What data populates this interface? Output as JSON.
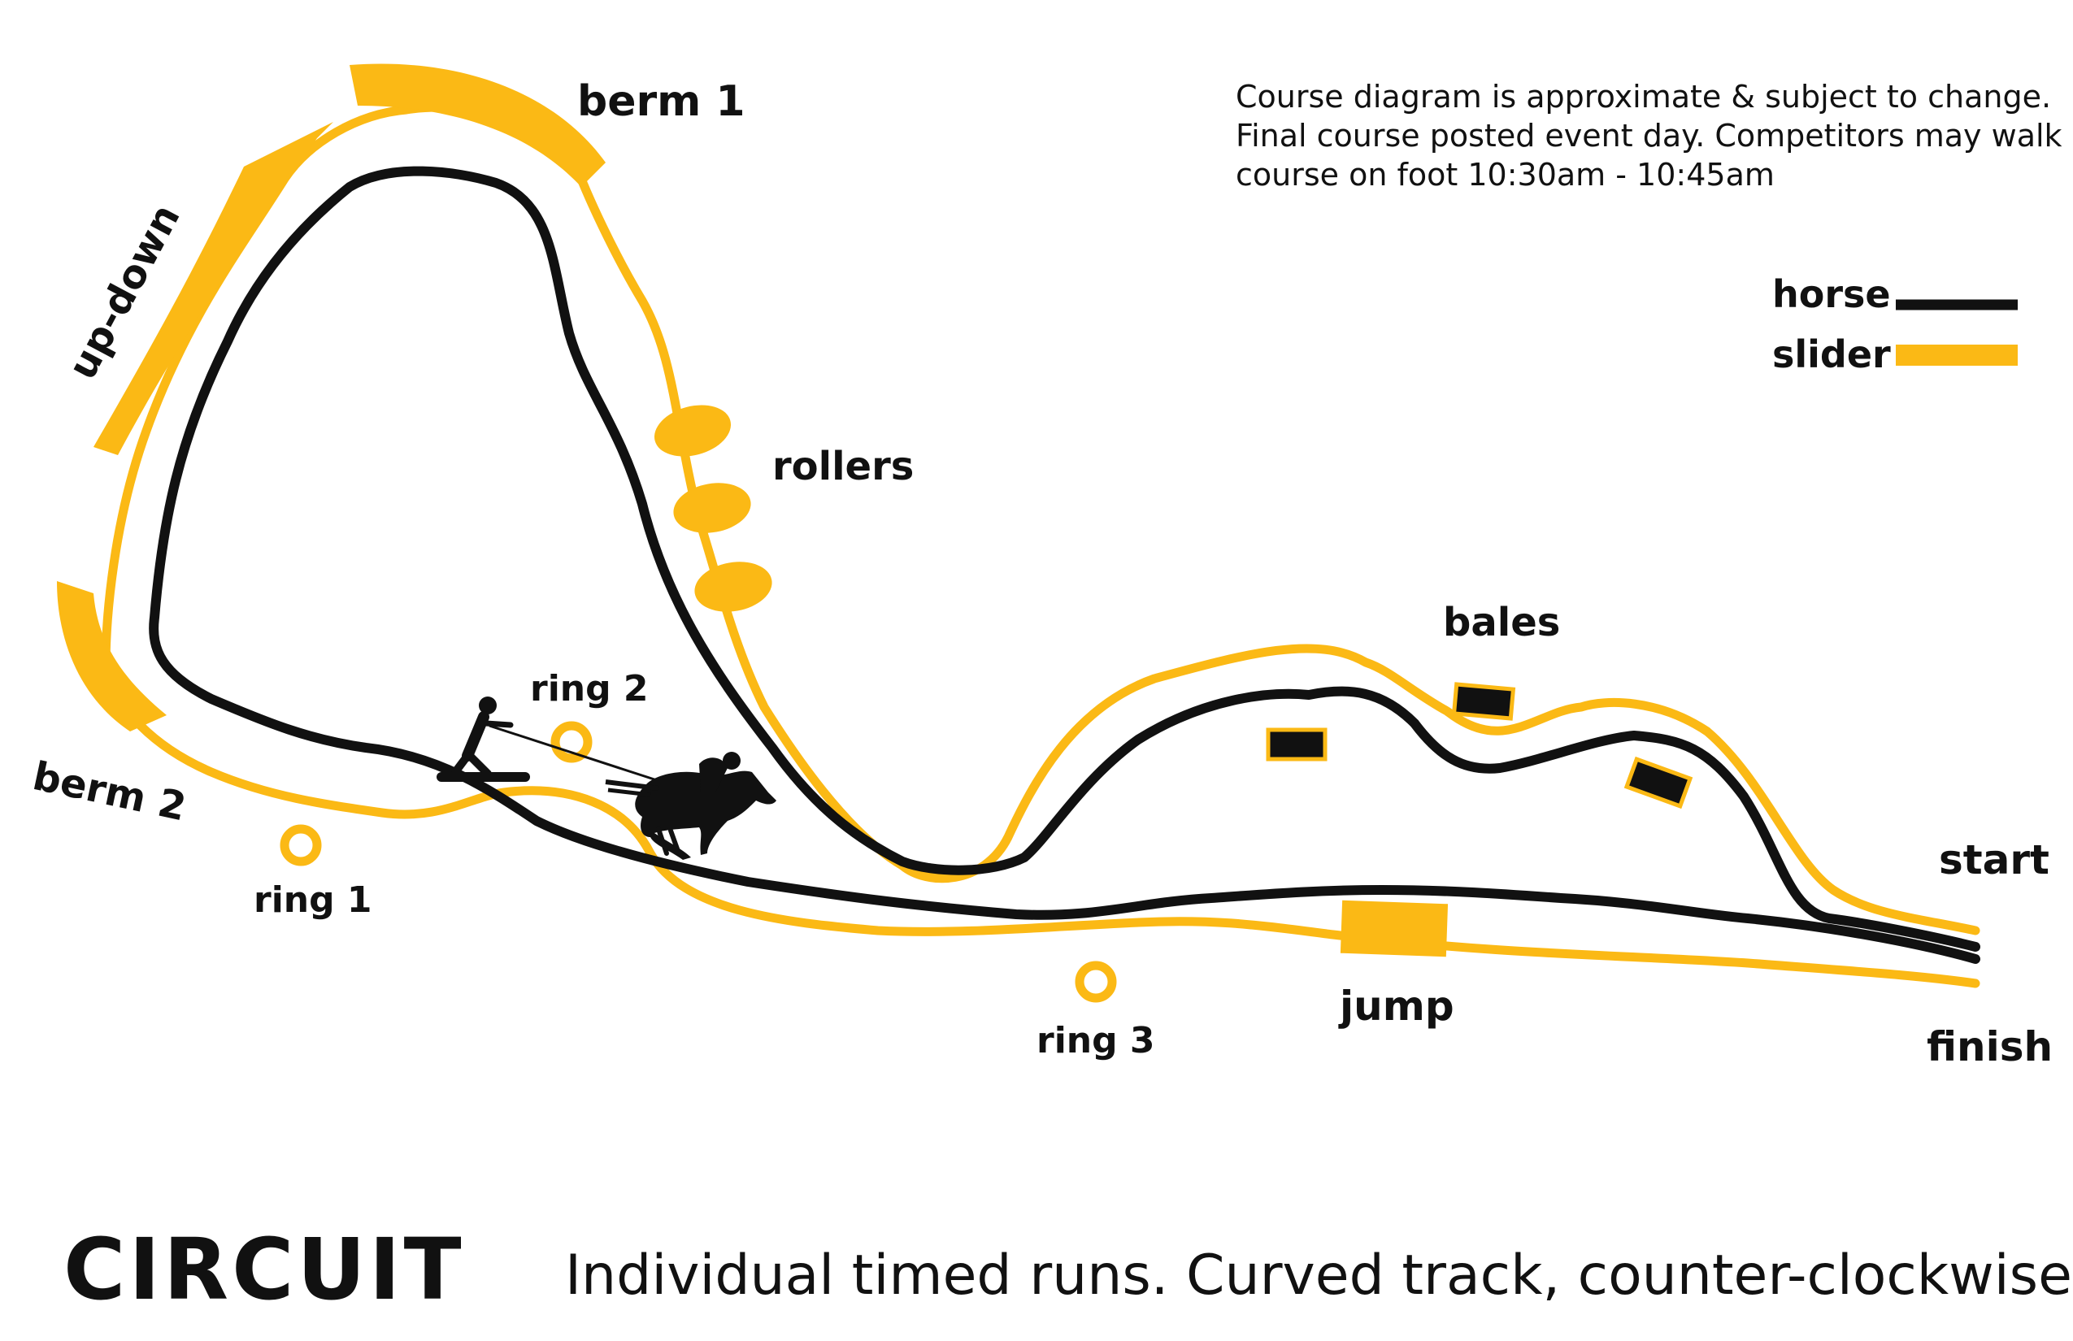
{
  "colors": {
    "horse": "#111111",
    "slider": "#FBB915",
    "background": "#FFFFFF"
  },
  "note_lines": [
    "Course diagram is approximate & subject to change.",
    "Final course posted event day. Competitors may walk",
    "course on foot 10:30am - 10:45am"
  ],
  "legend": {
    "horse": "horse",
    "slider": "slider"
  },
  "labels": {
    "berm1": "berm 1",
    "berm2": "berm 2",
    "updown": "up-down",
    "rollers": "rollers",
    "bales": "bales",
    "ring1": "ring 1",
    "ring2": "ring 2",
    "ring3": "ring 3",
    "jump": "jump",
    "start": "start",
    "finish": "finish"
  },
  "footer": {
    "title": "CIRCUIT",
    "subtitle": "Individual timed runs. Curved track, counter-clockwise."
  },
  "icons": [
    "skier-icon",
    "horse-rider-icon",
    "tow-rope-icon"
  ]
}
